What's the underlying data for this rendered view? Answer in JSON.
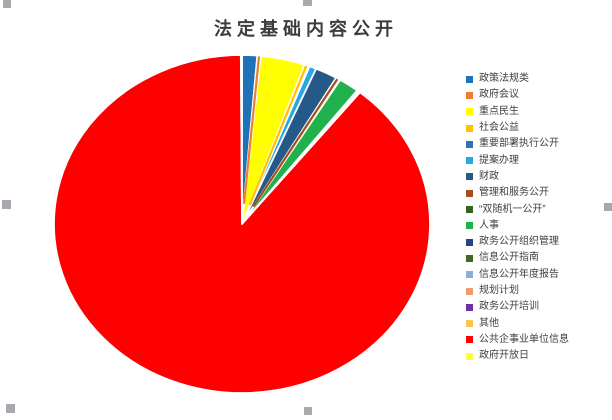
{
  "window": {
    "background_color": "#FFFFFF",
    "selection_handles": [
      "top-left",
      "top-center",
      "middle-left",
      "middle-right",
      "bottom-left",
      "bottom-center"
    ],
    "selection_handle_color": "#A6A9AD"
  },
  "chart_data": {
    "type": "pie",
    "title": "法定基础内容公开",
    "title_color": "#3C3C3C",
    "legend_position": "right",
    "legend_text_color": "#404040",
    "slice_border_color": "#FFFFFF",
    "series": [
      {
        "name": "政策法规类",
        "color": "#1F72B8",
        "share_pct": 1.3
      },
      {
        "name": "政府会议",
        "color": "#ED7D31",
        "share_pct": 0.3
      },
      {
        "name": "重点民生",
        "color": "#FFFF00",
        "share_pct": 3.8
      },
      {
        "name": "社会公益",
        "color": "#FFC000",
        "share_pct": 0.35
      },
      {
        "name": "重要部署执行公开",
        "color": "#2E74B5",
        "share_pct": 0.1
      },
      {
        "name": "提案办理",
        "color": "#28A8E0",
        "share_pct": 0.6
      },
      {
        "name": "财政",
        "color": "#24598A",
        "share_pct": 1.9
      },
      {
        "name": "管理和服务公开",
        "color": "#A34E1C",
        "share_pct": 0.3
      },
      {
        "name": "“双随机一公开”",
        "color": "#3A5F23",
        "share_pct": 0.1
      },
      {
        "name": "人事",
        "color": "#21B14C",
        "share_pct": 1.75
      },
      {
        "name": "政务公开组织管理",
        "color": "#24477F",
        "share_pct": 0.05
      },
      {
        "name": "信息公开指南",
        "color": "#45682A",
        "share_pct": 0.05
      },
      {
        "name": "信息公开年度报告",
        "color": "#8FAADC",
        "share_pct": 0.05
      },
      {
        "name": "规划计划",
        "color": "#EC9C6E",
        "share_pct": 0.05
      },
      {
        "name": "政务公开培训",
        "color": "#7030A0",
        "share_pct": 0.05
      },
      {
        "name": "其他",
        "color": "#F8C64F",
        "share_pct": 0.05
      },
      {
        "name": "公共企事业单位信息",
        "color": "#FF0000",
        "share_pct": 89.1
      },
      {
        "name": "政府开放日",
        "color": "#FFFF42",
        "share_pct": 0.1
      }
    ]
  }
}
